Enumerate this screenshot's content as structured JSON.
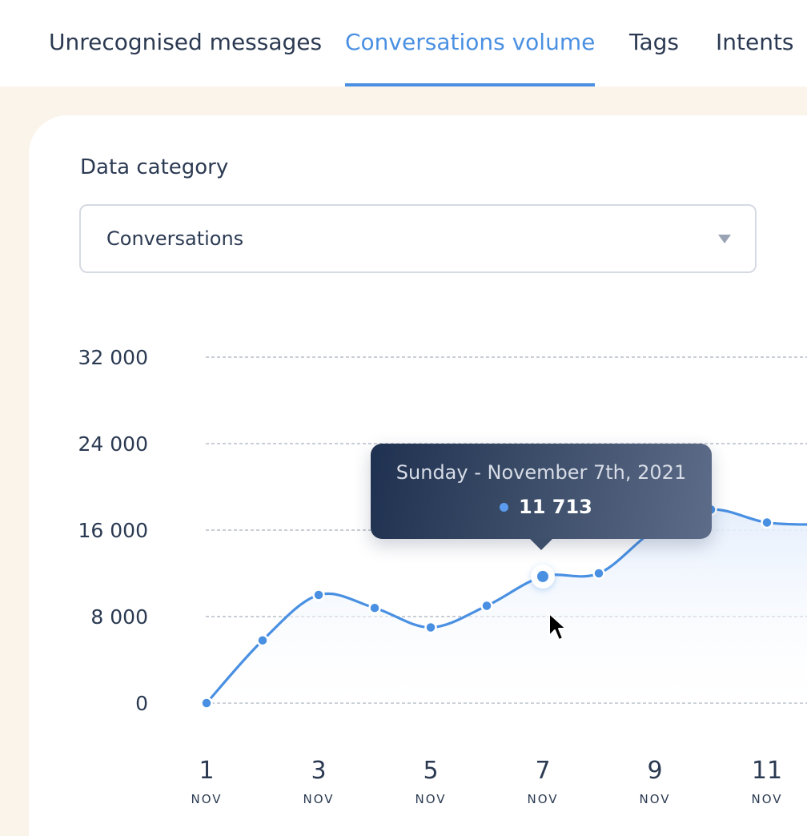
{
  "tabs": [
    {
      "label": "Unrecognised messages",
      "active": false
    },
    {
      "label": "Conversations volume",
      "active": true
    },
    {
      "label": "Tags",
      "active": false
    },
    {
      "label": "Intents",
      "active": false
    }
  ],
  "filter": {
    "label": "Data category",
    "selected": "Conversations"
  },
  "tooltip": {
    "date": "Sunday - November 7th, 2021",
    "value": "11 713"
  },
  "chart_data": {
    "type": "area",
    "x": [
      1,
      2,
      3,
      4,
      5,
      6,
      7,
      8,
      9,
      10,
      11,
      12
    ],
    "y": [
      0,
      5800,
      10000,
      8800,
      7000,
      9000,
      11713,
      12000,
      16000,
      17900,
      16700,
      16500
    ],
    "x_tick_labels": [
      "1",
      "3",
      "5",
      "7",
      "9",
      "11"
    ],
    "x_tick_sublabel": "NOV",
    "y_tick_labels": [
      "0",
      "8 000",
      "16 000",
      "24 000",
      "32 000"
    ],
    "ylim": [
      0,
      32000
    ],
    "grid": true,
    "highlighted_index": 6,
    "colors": {
      "line": "#4a90e2",
      "fill": "#eaf2fd",
      "grid": "#a9b0bd"
    }
  }
}
